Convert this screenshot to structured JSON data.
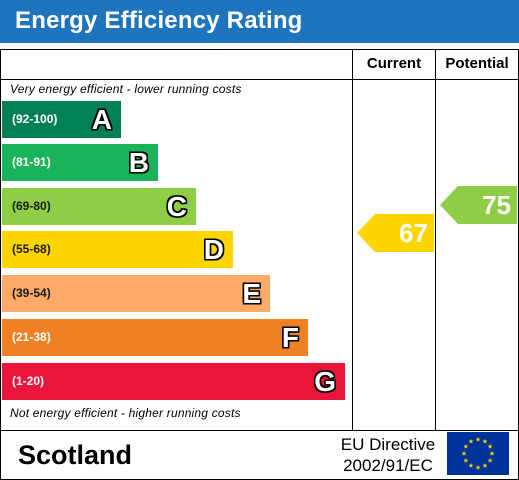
{
  "header": {
    "title": "Energy Efficiency Rating"
  },
  "columns": {
    "current": "Current",
    "potential": "Potential"
  },
  "notes": {
    "top": "Very energy efficient - lower running costs",
    "bottom": "Not energy efficient - higher running costs"
  },
  "bands": [
    {
      "range": "(92-100)",
      "letter": "A",
      "color": "#008054"
    },
    {
      "range": "(81-91)",
      "letter": "B",
      "color": "#19b459"
    },
    {
      "range": "(69-80)",
      "letter": "C",
      "color": "#8dce46"
    },
    {
      "range": "(55-68)",
      "letter": "D",
      "color": "#ffd500"
    },
    {
      "range": "(39-54)",
      "letter": "E",
      "color": "#fcaa65"
    },
    {
      "range": "(21-38)",
      "letter": "F",
      "color": "#ef8023"
    },
    {
      "range": "(1-20)",
      "letter": "G",
      "color": "#e9153b"
    }
  ],
  "ratings": {
    "current": {
      "value": "67",
      "band": "D",
      "color": "#ffd500"
    },
    "potential": {
      "value": "75",
      "band": "C",
      "color": "#8dce46"
    }
  },
  "footer": {
    "country": "Scotland",
    "directive_line1": "EU Directive",
    "directive_line2": "2002/91/EC",
    "flag_icon": "eu-flag-icon"
  }
}
